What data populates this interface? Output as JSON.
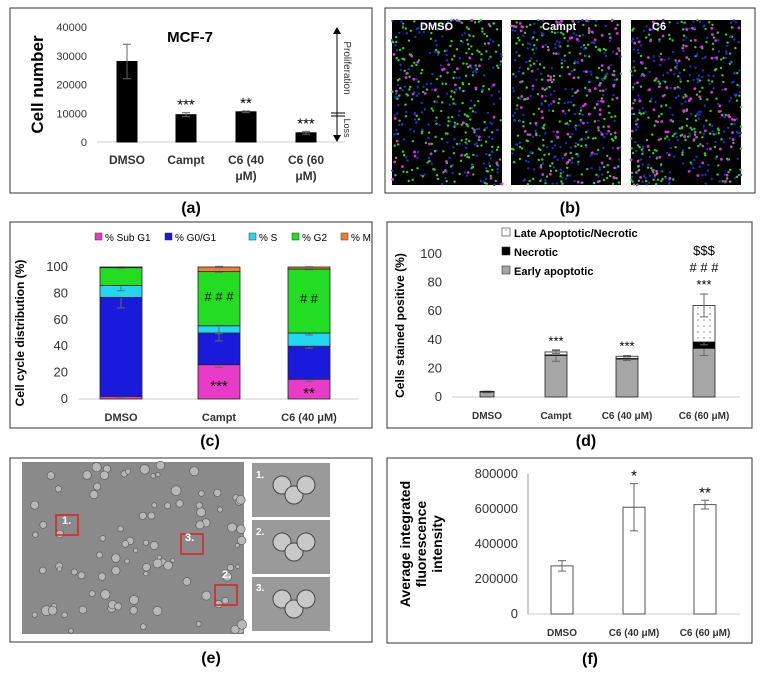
{
  "panels": {
    "a": {
      "label": "(a)"
    },
    "b": {
      "label": "(b)",
      "images": [
        "DMSO",
        "Campt",
        "C6"
      ]
    },
    "c": {
      "label": "(c)"
    },
    "d": {
      "label": "(d)"
    },
    "e": {
      "label": "(e)",
      "markers": [
        "1.",
        "2.",
        "3."
      ],
      "insets": [
        "1.",
        "2.",
        "3."
      ]
    },
    "f": {
      "label": "(f)"
    }
  },
  "colors": {
    "sub_g1": "#e83cc8",
    "g0_g1": "#1a1adc",
    "s": "#22d8f0",
    "g2": "#22dd22",
    "m": "#f08030",
    "early": "#a6a6a6",
    "necrotic": "#000000",
    "late": "#ffffff",
    "box_red": "#e02020"
  },
  "chart_data": [
    {
      "id": "a",
      "type": "bar",
      "title": "MCF-7",
      "ylabel": "Cell number",
      "ylim": [
        0,
        40000
      ],
      "yticks": [
        "0",
        "10000",
        "20000",
        "30000",
        "40000"
      ],
      "categories": [
        "DMSO",
        "Campt",
        "C6 (40 μM)",
        "C6 (60 μM)"
      ],
      "category_lines": [
        [
          "DMSO"
        ],
        [
          "Campt"
        ],
        [
          "C6 (40",
          "μM)"
        ],
        [
          "C6 (60",
          "μM)"
        ]
      ],
      "values": [
        28000,
        9500,
        10500,
        3200
      ],
      "errors": [
        6000,
        700,
        300,
        500
      ],
      "significance": [
        "",
        "***",
        "**",
        "***"
      ],
      "annotations": {
        "up": "Proliferation",
        "down": "Loss"
      }
    },
    {
      "id": "c",
      "type": "bar",
      "stacked": true,
      "ylabel": "Cell cycle distribution (%)",
      "ylim": [
        0,
        100
      ],
      "yticks": [
        "0",
        "20",
        "40",
        "60",
        "80",
        "100"
      ],
      "legend_position": "top",
      "categories": [
        "DMSO",
        "Campt",
        "C6 (40 μM)"
      ],
      "series": [
        {
          "name": "% Sub G1",
          "values": [
            2,
            26,
            15
          ],
          "errors": [
            0.5,
            2,
            1.5
          ]
        },
        {
          "name": "% G0/G1",
          "values": [
            75,
            24,
            25
          ],
          "errors": [
            8,
            6,
            1.5
          ]
        },
        {
          "name": "% S",
          "values": [
            9,
            5.5,
            10
          ],
          "errors": [
            4,
            6,
            1.5
          ]
        },
        {
          "name": "% G2",
          "values": [
            13.5,
            41,
            48.5
          ],
          "errors": [
            0.3,
            0.5,
            0.5
          ]
        },
        {
          "name": "% M",
          "values": [
            0.5,
            3.5,
            1.5
          ],
          "errors": [
            0,
            0.5,
            0.3
          ]
        }
      ],
      "significance": {
        "sub_g1": [
          "",
          "***",
          "**"
        ],
        "g2": [
          "",
          "# # #",
          "# #"
        ]
      }
    },
    {
      "id": "d",
      "type": "bar",
      "stacked": true,
      "ylabel": "Cells stained positive (%)",
      "ylim": [
        0,
        100
      ],
      "yticks": [
        "0",
        "20",
        "40",
        "60",
        "80",
        "100"
      ],
      "legend_position": "top-left",
      "categories": [
        "DMSO",
        "Campt",
        "C6 (40 μM)",
        "C6 (60 μM)"
      ],
      "series": [
        {
          "name": "Early apoptotic",
          "values": [
            3.5,
            29,
            26.5,
            34
          ],
          "errors": [
            0.5,
            4,
            1,
            5
          ]
        },
        {
          "name": "Necrotic",
          "values": [
            0.5,
            0.5,
            0.5,
            4.5
          ],
          "errors": [
            0,
            0,
            0,
            2
          ]
        },
        {
          "name": "Late Apoptotic/Necrotic",
          "values": [
            0,
            2,
            1.5,
            25.5
          ],
          "errors": [
            0,
            1,
            0.5,
            8
          ]
        }
      ],
      "significance": [
        [],
        [
          "***"
        ],
        [
          "***"
        ],
        [
          "$$$",
          "# # #",
          "***"
        ]
      ]
    },
    {
      "id": "f",
      "type": "bar",
      "ylabel": "Average integrated fluorescence intensity",
      "ylabel_lines": [
        "Average integrated",
        "fluorescence",
        "intensity"
      ],
      "ylim": [
        0,
        800000
      ],
      "yticks": [
        "0",
        "200000",
        "400000",
        "600000",
        "800000"
      ],
      "categories": [
        "DMSO",
        "C6 (40 μM)",
        "C6 (60 μM)"
      ],
      "values": [
        275000,
        610000,
        625000
      ],
      "errors": [
        30000,
        135000,
        25000
      ],
      "significance": [
        "",
        "*",
        "**"
      ]
    }
  ]
}
